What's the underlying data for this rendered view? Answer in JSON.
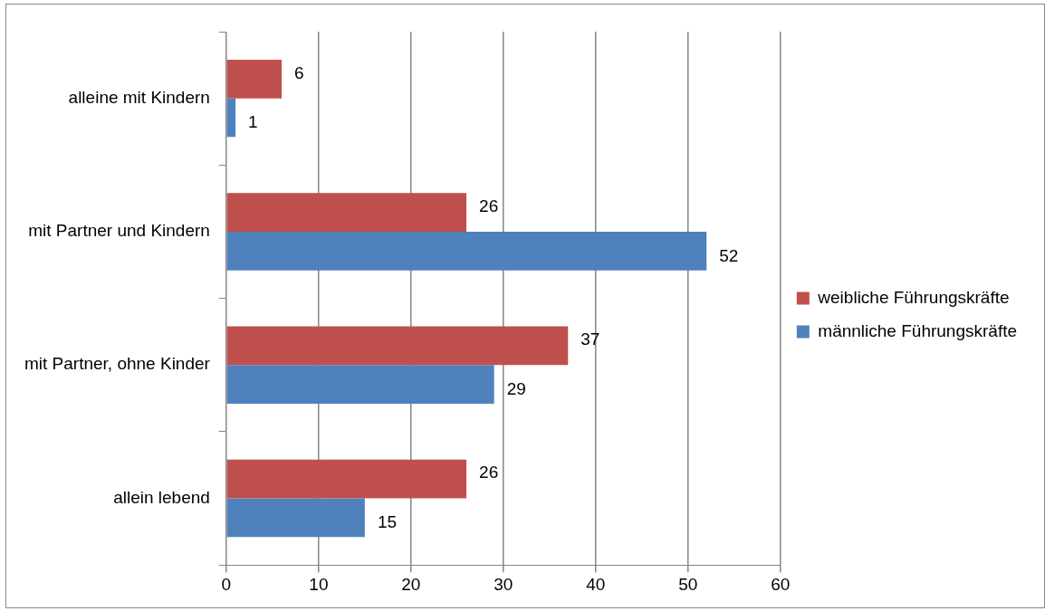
{
  "chart_data": {
    "type": "bar",
    "orientation": "horizontal",
    "categories": [
      "alleine mit Kindern",
      "mit Partner und Kindern",
      "mit Partner, ohne Kinder",
      "allein lebend"
    ],
    "series": [
      {
        "name": "weibliche Führungskräfte",
        "color": "#c0504d",
        "values": [
          6,
          26,
          37,
          26
        ]
      },
      {
        "name": "männliche Führungskräfte",
        "color": "#4f81bd",
        "values": [
          1,
          52,
          29,
          15
        ]
      }
    ],
    "xlim": [
      0,
      60
    ],
    "xticks": [
      0,
      10,
      20,
      30,
      40,
      50,
      60
    ],
    "grid": "x",
    "legend": "right",
    "data_labels": true
  }
}
